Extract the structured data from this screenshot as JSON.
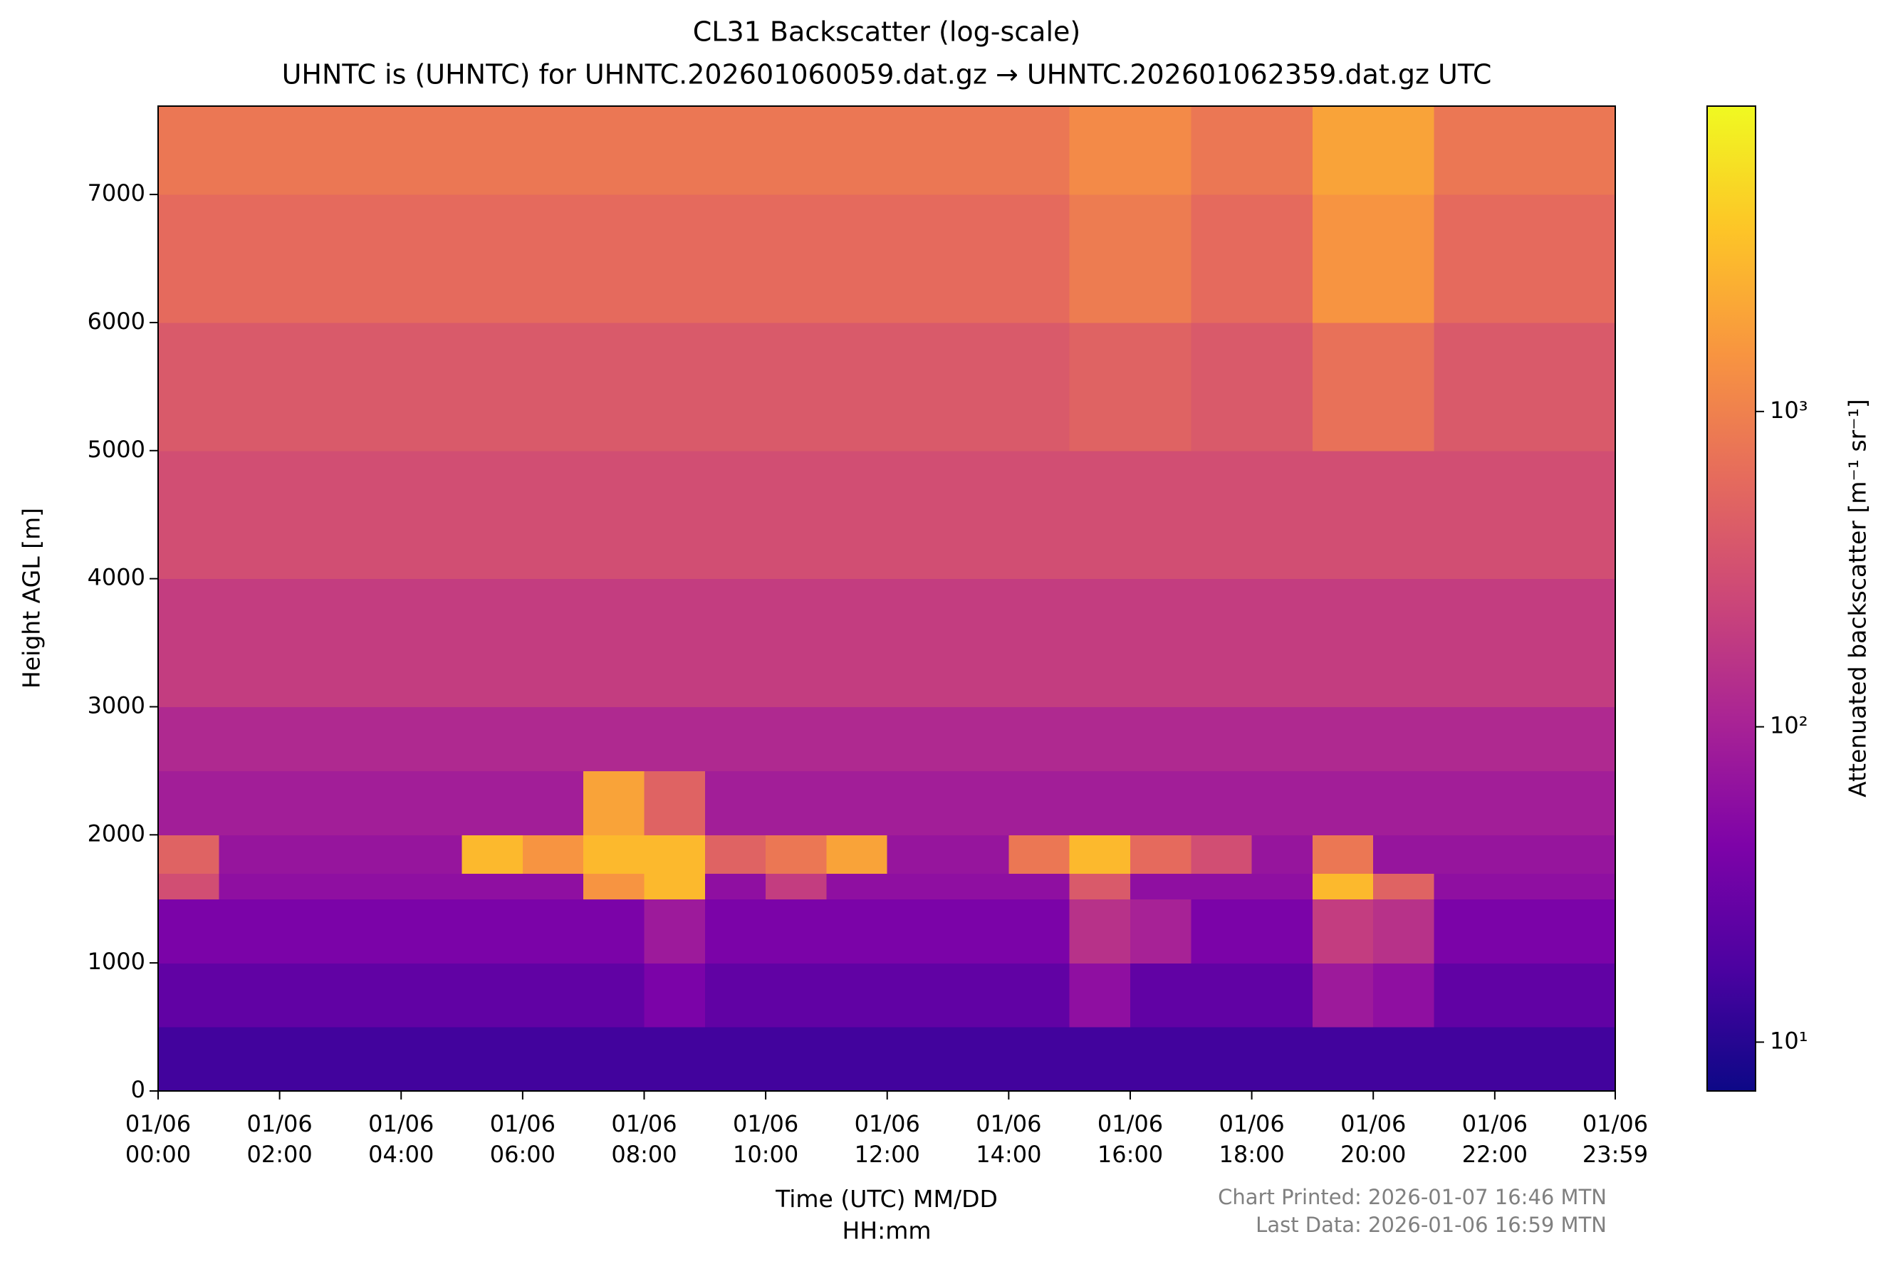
{
  "chart_data": {
    "type": "heatmap",
    "title": "CL31 Backscatter (log-scale)",
    "subtitle": "UHNTC is (UHNTC) for UHNTC.202601060059.dat.gz → UHNTC.202601062359.dat.gz UTC",
    "x_label": "Time (UTC) MM/DD\nHH:mm",
    "y_label": "Height AGL [m]",
    "colorbar_label": "Attenuated backscatter [m⁻¹ sr⁻¹]",
    "notes": [
      "Chart Printed: 2026-01-07 16:46 MTN",
      "Last Data: 2026-01-06 16:59 MTN"
    ],
    "colormap": "plasma",
    "color_scale": "log",
    "clim": [
      7,
      9300
    ],
    "cticks": [
      {
        "value": 10,
        "label": "10¹"
      },
      {
        "value": 100,
        "label": "10²"
      },
      {
        "value": 1000,
        "label": "10³"
      }
    ],
    "xlim": [
      0,
      23.983
    ],
    "xticks": [
      {
        "value": 0,
        "label": "01/06\n00:00"
      },
      {
        "value": 2,
        "label": "01/06\n02:00"
      },
      {
        "value": 4,
        "label": "01/06\n04:00"
      },
      {
        "value": 6,
        "label": "01/06\n06:00"
      },
      {
        "value": 8,
        "label": "01/06\n08:00"
      },
      {
        "value": 10,
        "label": "01/06\n10:00"
      },
      {
        "value": 12,
        "label": "01/06\n12:00"
      },
      {
        "value": 14,
        "label": "01/06\n14:00"
      },
      {
        "value": 16,
        "label": "01/06\n16:00"
      },
      {
        "value": 18,
        "label": "01/06\n18:00"
      },
      {
        "value": 20,
        "label": "01/06\n20:00"
      },
      {
        "value": 22,
        "label": "01/06\n22:00"
      },
      {
        "value": 23.983,
        "label": "01/06\n23:59"
      }
    ],
    "ylim": [
      0,
      7690
    ],
    "yticks": [
      0,
      1000,
      2000,
      3000,
      4000,
      5000,
      6000,
      7000
    ],
    "x_bins": [
      0,
      1,
      2,
      3,
      4,
      5,
      6,
      7,
      8,
      9,
      10,
      11,
      12,
      13,
      14,
      15,
      16,
      17,
      18,
      19,
      20,
      21,
      22,
      23,
      23.983
    ],
    "y_bins": [
      0,
      500,
      1000,
      1500,
      1700,
      2000,
      2500,
      3000,
      4000,
      5000,
      6000,
      7000,
      7690
    ],
    "values": [
      [
        15,
        15,
        15,
        15,
        15,
        15,
        15,
        15,
        15,
        15,
        15,
        15,
        15,
        15,
        15,
        15,
        15,
        15,
        15,
        15,
        15,
        15,
        15,
        15
      ],
      [
        25,
        25,
        25,
        25,
        25,
        25,
        25,
        25,
        40,
        25,
        25,
        25,
        25,
        25,
        25,
        60,
        25,
        25,
        25,
        80,
        60,
        25,
        25,
        25
      ],
      [
        40,
        40,
        40,
        40,
        40,
        40,
        40,
        40,
        80,
        40,
        40,
        40,
        40,
        40,
        40,
        150,
        100,
        40,
        40,
        200,
        150,
        40,
        40,
        40
      ],
      [
        300,
        60,
        60,
        60,
        60,
        60,
        60,
        1500,
        3000,
        60,
        200,
        60,
        60,
        60,
        60,
        400,
        60,
        60,
        60,
        3000,
        500,
        60,
        60,
        60
      ],
      [
        500,
        70,
        70,
        70,
        70,
        3000,
        1500,
        3000,
        3000,
        500,
        800,
        2000,
        70,
        70,
        800,
        3000,
        600,
        300,
        70,
        800,
        70,
        70,
        70,
        70
      ],
      [
        90,
        90,
        90,
        90,
        90,
        90,
        90,
        2000,
        500,
        90,
        90,
        90,
        90,
        90,
        90,
        90,
        90,
        90,
        90,
        90,
        90,
        90,
        90,
        90
      ],
      [
        120,
        120,
        120,
        120,
        120,
        120,
        120,
        120,
        120,
        120,
        120,
        120,
        120,
        120,
        120,
        120,
        120,
        120,
        120,
        120,
        120,
        120,
        120,
        120
      ],
      [
        200,
        200,
        200,
        200,
        200,
        200,
        200,
        200,
        200,
        200,
        200,
        200,
        200,
        200,
        200,
        200,
        200,
        200,
        200,
        200,
        200,
        200,
        200,
        200
      ],
      [
        300,
        300,
        300,
        300,
        300,
        300,
        300,
        300,
        300,
        300,
        300,
        300,
        300,
        300,
        300,
        300,
        300,
        300,
        300,
        300,
        300,
        300,
        300,
        300
      ],
      [
        400,
        400,
        400,
        400,
        400,
        400,
        400,
        400,
        400,
        400,
        400,
        400,
        400,
        400,
        400,
        500,
        500,
        400,
        400,
        700,
        700,
        400,
        400,
        400
      ],
      [
        600,
        600,
        600,
        600,
        600,
        600,
        600,
        600,
        600,
        600,
        600,
        600,
        600,
        600,
        600,
        900,
        900,
        600,
        600,
        1500,
        1500,
        600,
        600,
        600
      ],
      [
        800,
        800,
        800,
        800,
        800,
        800,
        800,
        800,
        800,
        800,
        800,
        800,
        800,
        800,
        800,
        1200,
        1200,
        800,
        800,
        2000,
        2000,
        800,
        800,
        800
      ]
    ]
  }
}
